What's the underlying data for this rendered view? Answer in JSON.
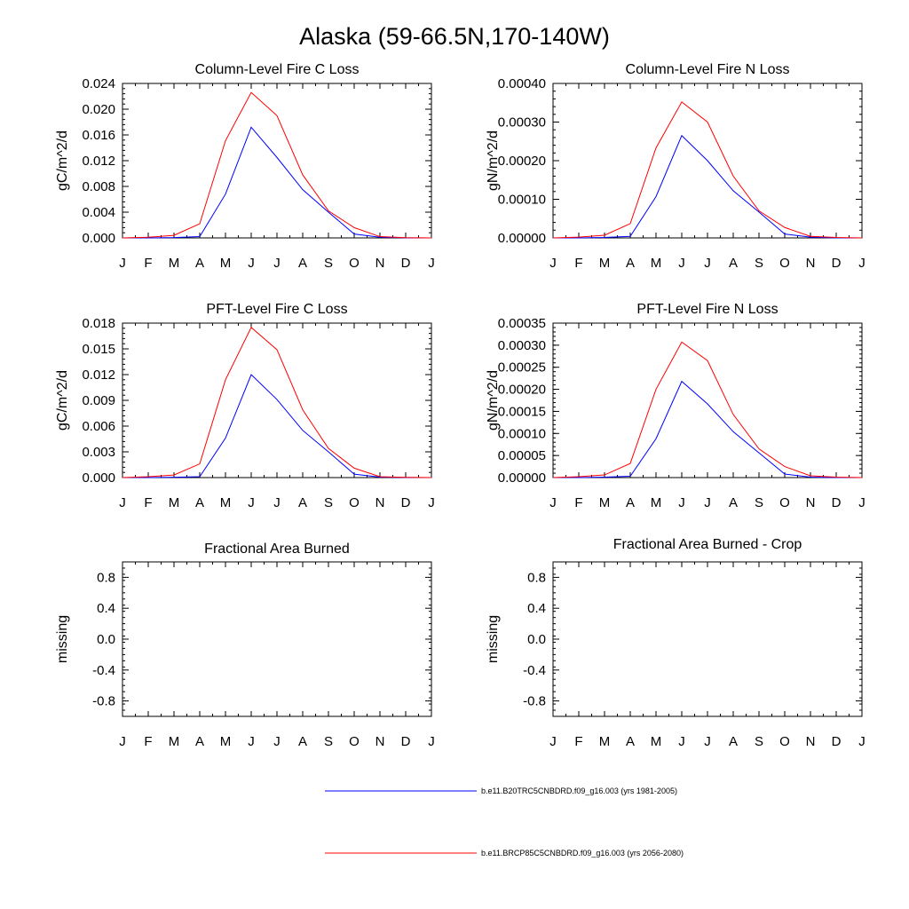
{
  "title": "Alaska (59-66.5N,170-140W)",
  "legend": [
    {
      "label": "b.e11.B20TRC5CNBDRD.f09_g16.003 (yrs 1981-2005)",
      "color": "#0000ff"
    },
    {
      "label": "b.e11.BRCP85C5CNBDRD.f09_g16.003 (yrs 2056-2080)",
      "color": "#ff0000"
    }
  ],
  "chart_data": [
    {
      "type": "line",
      "title": "Column-Level Fire C Loss",
      "ylabel": "gC/m^2/d",
      "categories": [
        "J",
        "F",
        "M",
        "A",
        "M",
        "J",
        "J",
        "A",
        "S",
        "O",
        "N",
        "D",
        "J"
      ],
      "ylim": [
        0,
        0.024
      ],
      "yticks": [
        0,
        0.004,
        0.008,
        0.012,
        0.016,
        0.02,
        0.024
      ],
      "ytick_labels": [
        "0.000",
        "0.004",
        "0.008",
        "0.012",
        "0.016",
        "0.020",
        "0.024"
      ],
      "series": [
        {
          "color": "#0000ff",
          "values": [
            0,
            0,
            5e-05,
            0.0002,
            0.0068,
            0.0172,
            0.0125,
            0.0075,
            0.004,
            0.0006,
            0.0001,
            2e-05,
            0
          ]
        },
        {
          "color": "#ff0000",
          "values": [
            0,
            0.0001,
            0.0004,
            0.0022,
            0.0151,
            0.0226,
            0.019,
            0.0098,
            0.0042,
            0.0016,
            0.0002,
            3e-05,
            0
          ]
        }
      ]
    },
    {
      "type": "line",
      "title": "Column-Level Fire N Loss",
      "ylabel": "gN/m^2/d",
      "categories": [
        "J",
        "F",
        "M",
        "A",
        "M",
        "J",
        "J",
        "A",
        "S",
        "O",
        "N",
        "D",
        "J"
      ],
      "ylim": [
        0,
        0.0004
      ],
      "yticks": [
        0,
        0.0001,
        0.0002,
        0.0003,
        0.0004
      ],
      "ytick_labels": [
        "0.00000",
        "0.00010",
        "0.00020",
        "0.00030",
        "0.00040"
      ],
      "series": [
        {
          "color": "#0000ff",
          "values": [
            0,
            0,
            1e-06,
            4e-06,
            0.000107,
            0.000265,
            0.0002,
            0.000122,
            6.7e-05,
            1e-05,
            2e-06,
            0,
            0
          ]
        },
        {
          "color": "#ff0000",
          "values": [
            0,
            2e-06,
            7e-06,
            3.7e-05,
            0.000233,
            0.000352,
            0.0003,
            0.00016,
            7e-05,
            2.7e-05,
            4e-06,
            1e-06,
            0
          ]
        }
      ]
    },
    {
      "type": "line",
      "title": "PFT-Level Fire C Loss",
      "ylabel": "gC/m^2/d",
      "categories": [
        "J",
        "F",
        "M",
        "A",
        "M",
        "J",
        "J",
        "A",
        "S",
        "O",
        "N",
        "D",
        "J"
      ],
      "ylim": [
        0,
        0.018
      ],
      "yticks": [
        0,
        0.003,
        0.006,
        0.009,
        0.012,
        0.015,
        0.018
      ],
      "ytick_labels": [
        "0.000",
        "0.003",
        "0.006",
        "0.009",
        "0.012",
        "0.015",
        "0.018"
      ],
      "series": [
        {
          "color": "#0000ff",
          "values": [
            0,
            0,
            4e-05,
            0.0001,
            0.0046,
            0.012,
            0.0091,
            0.0055,
            0.003,
            0.0004,
            5e-05,
            1e-05,
            0
          ]
        },
        {
          "color": "#ff0000",
          "values": [
            0,
            0.0001,
            0.0003,
            0.0016,
            0.0114,
            0.0175,
            0.0149,
            0.0079,
            0.0034,
            0.0011,
            0.0001,
            2e-05,
            0
          ]
        }
      ]
    },
    {
      "type": "line",
      "title": "PFT-Level Fire N Loss",
      "ylabel": "gN/m^2/d",
      "categories": [
        "J",
        "F",
        "M",
        "A",
        "M",
        "J",
        "J",
        "A",
        "S",
        "O",
        "N",
        "D",
        "J"
      ],
      "ylim": [
        0,
        0.00035
      ],
      "yticks": [
        0,
        5e-05,
        0.0001,
        0.00015,
        0.0002,
        0.00025,
        0.0003,
        0.00035
      ],
      "ytick_labels": [
        "0.00000",
        "0.00005",
        "0.00010",
        "0.00015",
        "0.00020",
        "0.00025",
        "0.00030",
        "0.00035"
      ],
      "series": [
        {
          "color": "#0000ff",
          "values": [
            0,
            0,
            1e-06,
            3e-06,
            8.8e-05,
            0.000218,
            0.000167,
            0.000104,
            5.6e-05,
            8e-06,
            1e-06,
            0,
            0
          ]
        },
        {
          "color": "#ff0000",
          "values": [
            0,
            2e-06,
            6e-06,
            3.2e-05,
            0.0002,
            0.000307,
            0.000265,
            0.000143,
            6.5e-05,
            2.5e-05,
            4e-06,
            1e-06,
            0
          ]
        }
      ]
    },
    {
      "type": "line",
      "title": "Fractional Area Burned",
      "ylabel": "missing",
      "categories": [
        "J",
        "F",
        "M",
        "A",
        "M",
        "J",
        "J",
        "A",
        "S",
        "O",
        "N",
        "D",
        "J"
      ],
      "ylim": [
        -1,
        1
      ],
      "yticks": [
        -0.8,
        -0.4,
        0.0,
        0.4,
        0.8
      ],
      "ytick_labels": [
        "-0.8",
        "-0.4",
        "0.0",
        "0.4",
        "0.8"
      ],
      "series": []
    },
    {
      "type": "line",
      "title": "Fractional Area Burned - Crop",
      "ylabel": "missing",
      "categories": [
        "J",
        "F",
        "M",
        "A",
        "M",
        "J",
        "J",
        "A",
        "S",
        "O",
        "N",
        "D",
        "J"
      ],
      "ylim": [
        -1,
        1
      ],
      "yticks": [
        -0.8,
        -0.4,
        0.0,
        0.4,
        0.8
      ],
      "ytick_labels": [
        "-0.8",
        "-0.4",
        "0.0",
        "0.4",
        "0.8"
      ],
      "series": []
    }
  ]
}
